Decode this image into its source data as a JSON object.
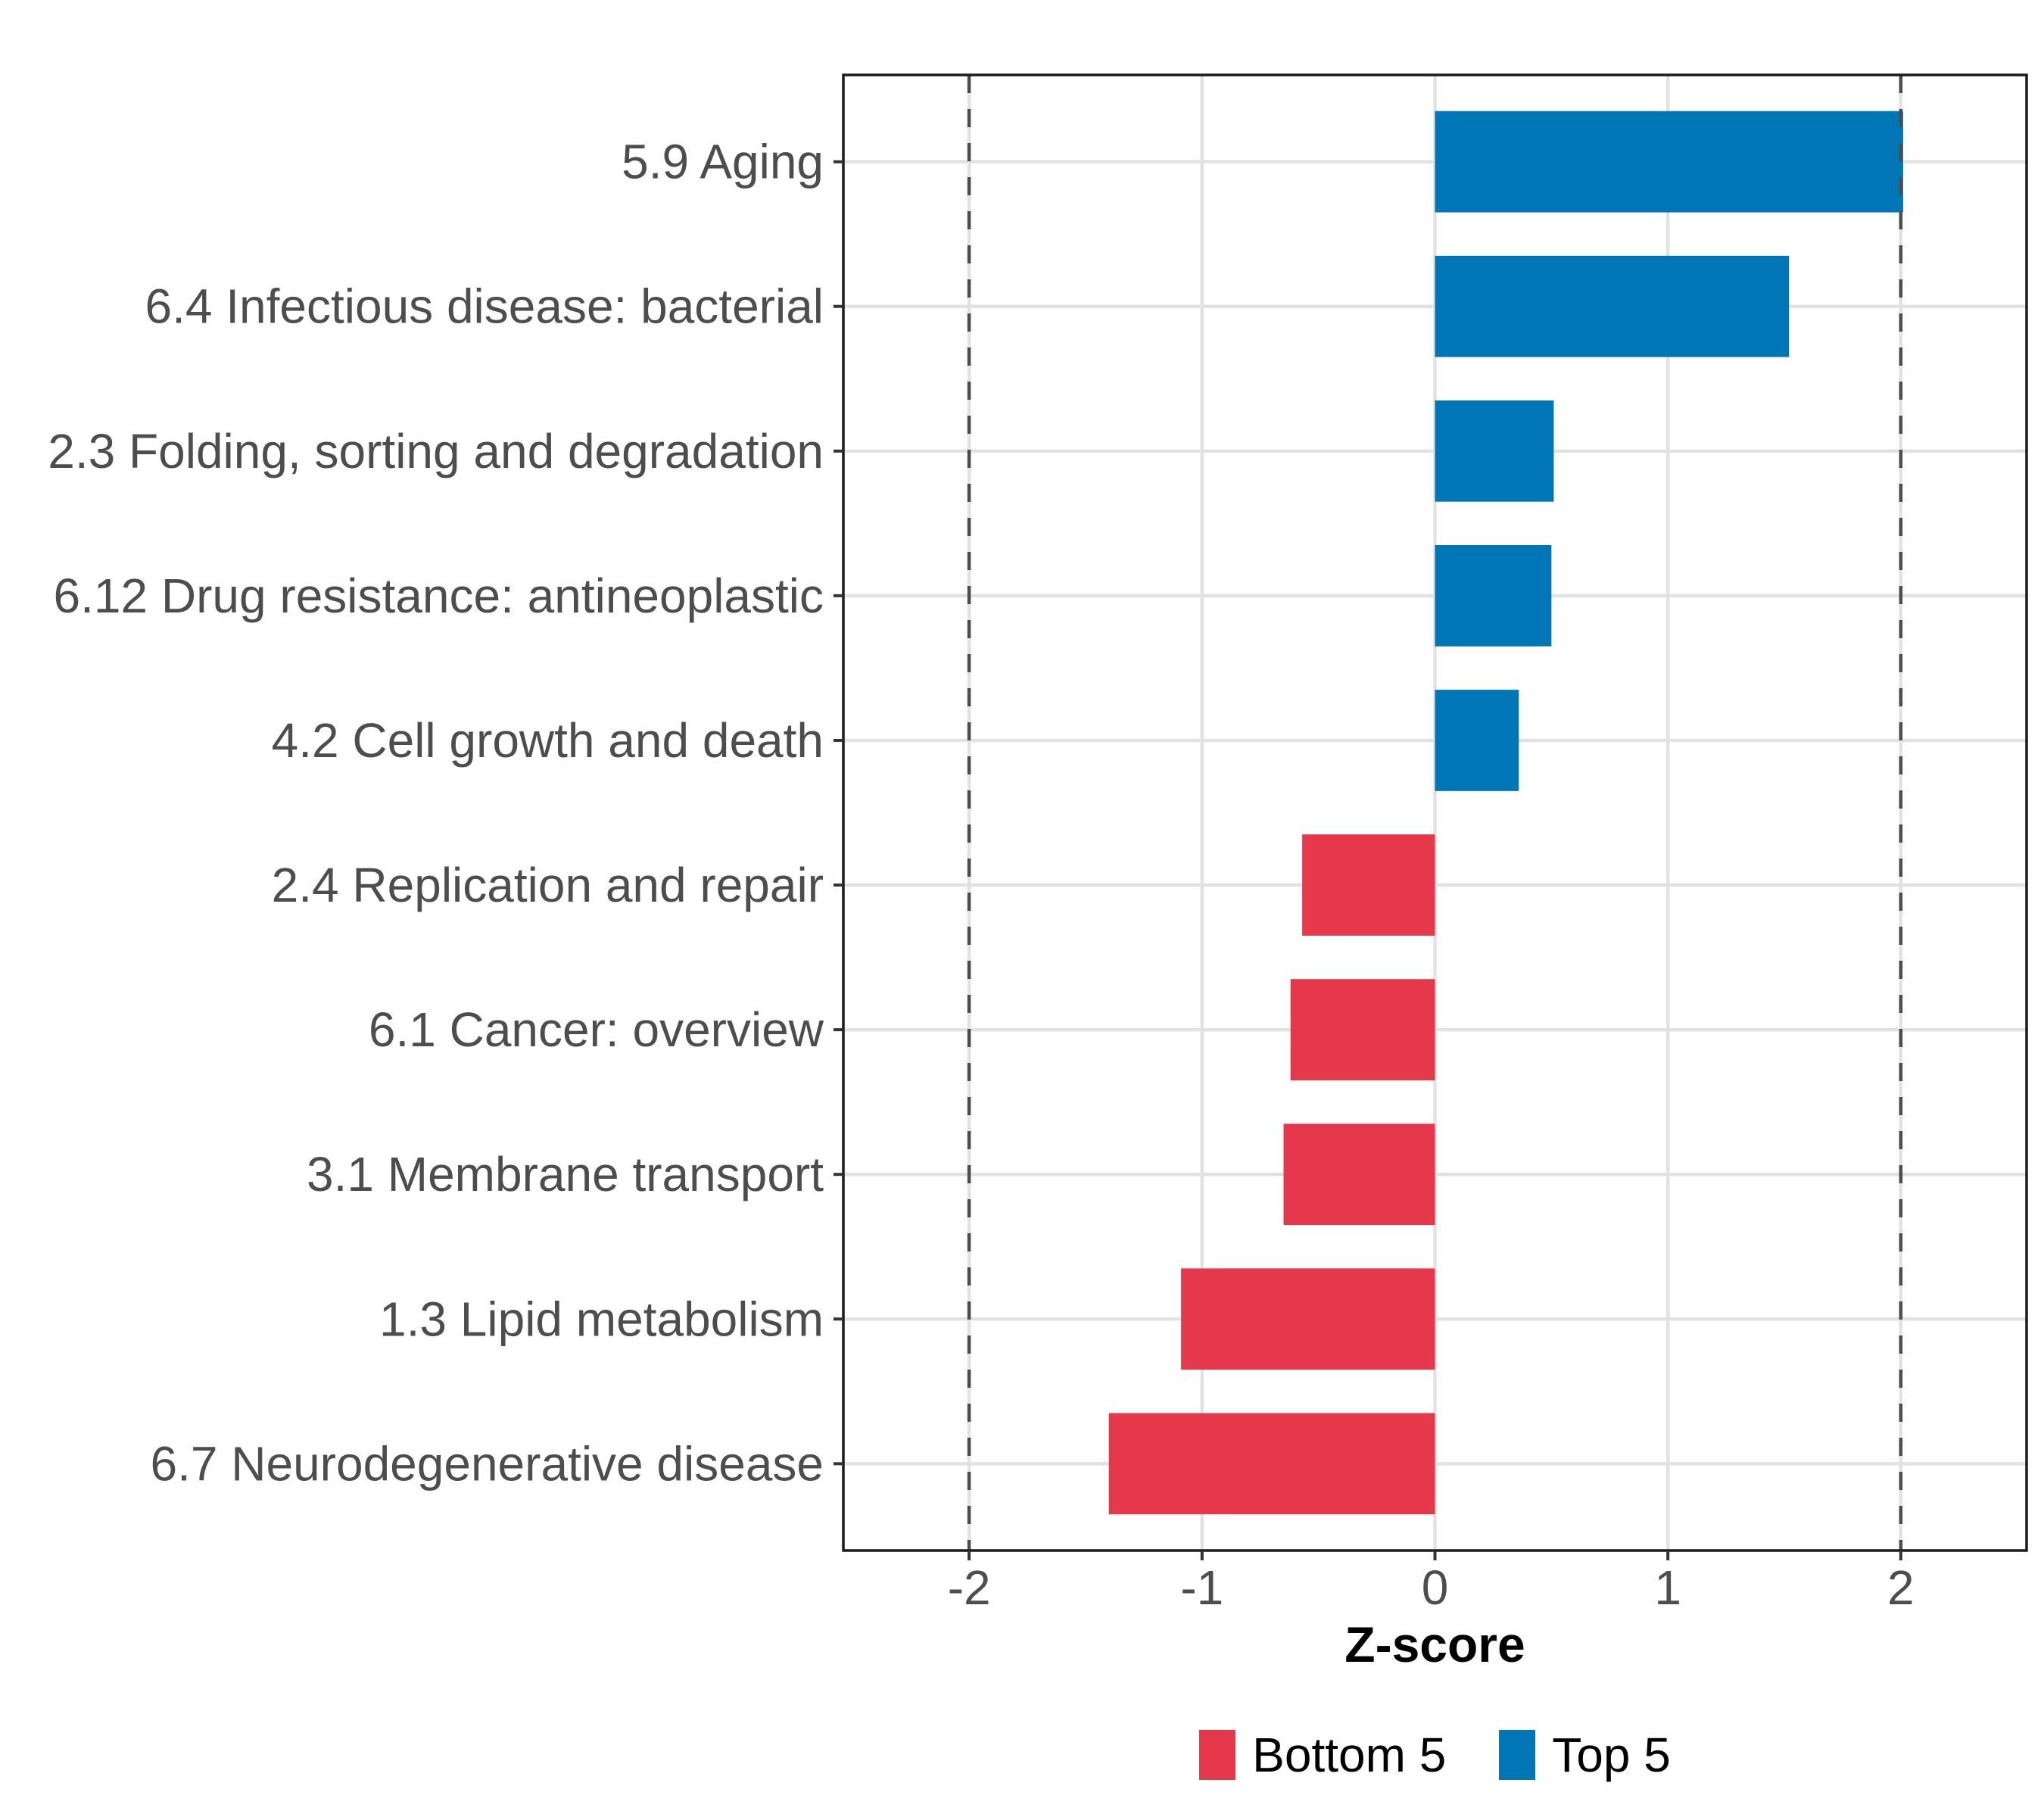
{
  "chart_data": {
    "type": "bar",
    "orientation": "horizontal",
    "title": "",
    "xlabel": "Z-score",
    "ylabel": "",
    "categories": [
      "5.9 Aging",
      "6.4 Infectious disease: bacterial",
      "2.3 Folding, sorting and degradation",
      "6.12 Drug resistance: antineoplastic",
      "4.2 Cell growth and death",
      "2.4 Replication and repair",
      "6.1 Cancer: overview",
      "3.1 Membrane transport",
      "1.3 Lipid metabolism",
      "6.7 Neurodegenerative disease"
    ],
    "values": [
      2.01,
      1.52,
      0.51,
      0.5,
      0.36,
      -0.57,
      -0.62,
      -0.65,
      -1.09,
      -1.4
    ],
    "groups": [
      "Top 5",
      "Top 5",
      "Top 5",
      "Top 5",
      "Top 5",
      "Bottom 5",
      "Bottom 5",
      "Bottom 5",
      "Bottom 5",
      "Bottom 5"
    ],
    "group_colors": {
      "Top 5": "#0076B6",
      "Bottom 5": "#E5384A"
    },
    "x_ticks": [
      -2,
      -1,
      0,
      1,
      2
    ],
    "x_tick_labels": [
      "-2",
      "-1",
      "0",
      "1",
      "2"
    ],
    "xlim": [
      -2.54,
      2.54
    ],
    "reference_lines": [
      -2,
      2
    ],
    "grid": true,
    "legend": {
      "position": "bottom",
      "entries": [
        {
          "label": "Bottom 5",
          "color": "#E5384A"
        },
        {
          "label": "Top 5",
          "color": "#0076B6"
        }
      ]
    }
  },
  "styles": {
    "background": "#FFFFFF",
    "grid_color": "#E2E2E2",
    "reference_line_color": "#4D4D4D",
    "axis_text_color": "#4D4D4D",
    "panel_border_color": "#1A1A1A",
    "tick_color": "#333333"
  }
}
